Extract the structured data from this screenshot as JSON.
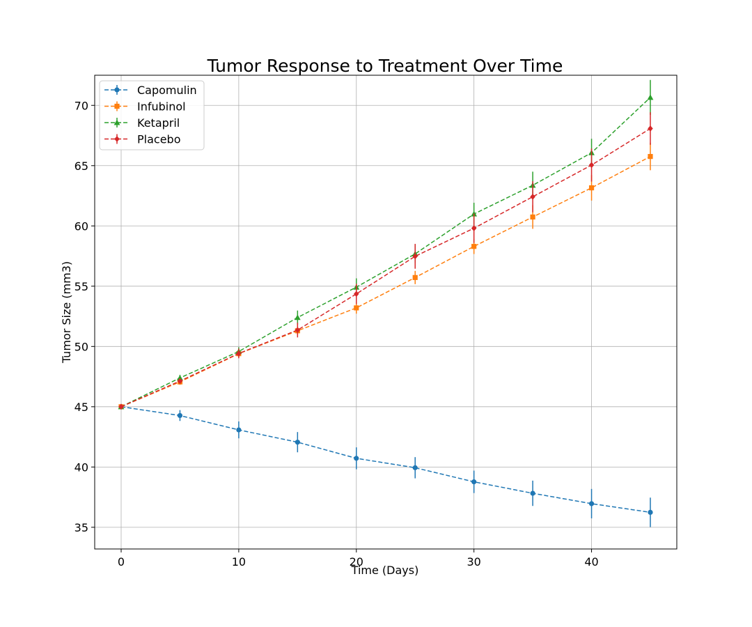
{
  "chart_data": {
    "type": "line",
    "title": "Tumor Response to Treatment Over Time",
    "xlabel": "Time (Days)",
    "ylabel": "Tumor Size (mm3)",
    "xlim": [
      -2.25,
      47.25
    ],
    "ylim": [
      33.2,
      72.5
    ],
    "xticks": [
      0,
      10,
      20,
      30,
      40
    ],
    "yticks": [
      35,
      40,
      45,
      50,
      55,
      60,
      65,
      70
    ],
    "grid": true,
    "legend_position": "top-left",
    "x": [
      0,
      5,
      10,
      15,
      20,
      25,
      30,
      35,
      40,
      45
    ],
    "series": [
      {
        "name": "Capomulin",
        "color": "#1f77b4",
        "marker": "circle",
        "values": [
          45.0,
          44.27,
          43.08,
          42.06,
          40.72,
          39.94,
          38.77,
          37.82,
          36.96,
          36.24
        ],
        "errors": [
          0.0,
          0.45,
          0.7,
          0.84,
          0.91,
          0.88,
          0.93,
          1.05,
          1.22,
          1.22
        ]
      },
      {
        "name": "Infubinol",
        "color": "#ff7f0e",
        "marker": "square",
        "values": [
          45.0,
          47.06,
          49.4,
          51.3,
          53.2,
          55.72,
          58.3,
          60.74,
          63.16,
          65.76
        ],
        "errors": [
          0.0,
          0.24,
          0.28,
          0.36,
          0.48,
          0.55,
          0.63,
          0.98,
          1.06,
          1.14
        ]
      },
      {
        "name": "Ketapril",
        "color": "#2ca02c",
        "marker": "triangle",
        "values": [
          45.0,
          47.39,
          49.58,
          52.4,
          54.92,
          57.68,
          60.99,
          63.37,
          66.07,
          70.66
        ],
        "errors": [
          0.0,
          0.26,
          0.36,
          0.58,
          0.73,
          0.76,
          0.93,
          1.13,
          1.16,
          1.45
        ]
      },
      {
        "name": "Placebo",
        "color": "#d62728",
        "marker": "diamond",
        "values": [
          45.0,
          47.13,
          49.42,
          51.36,
          54.36,
          57.48,
          59.81,
          62.42,
          65.05,
          68.08
        ],
        "errors": [
          0.0,
          0.22,
          0.4,
          0.61,
          0.84,
          1.03,
          1.22,
          1.29,
          1.37,
          1.35
        ]
      }
    ]
  }
}
